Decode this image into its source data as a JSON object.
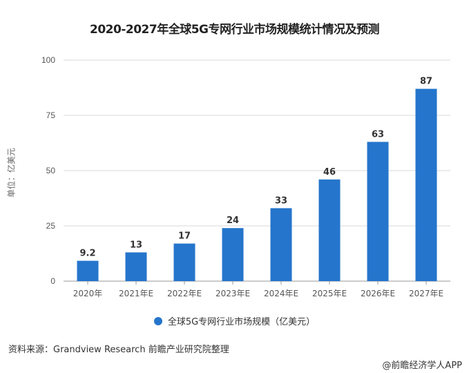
{
  "chart_data": {
    "type": "bar",
    "title": "2020-2027年全球5G专网行业市场规模统计情况及预测",
    "categories": [
      "2020年",
      "2021年E",
      "2022年E",
      "2023年E",
      "2024年E",
      "2025年E",
      "2026年E",
      "2027年E"
    ],
    "series": [
      {
        "name": "全球5G专网行业市场规模（亿美元）",
        "values": [
          9.2,
          13,
          17,
          24,
          33,
          46,
          63,
          87
        ],
        "color": "#2575cc"
      }
    ],
    "data_labels": [
      "9.2",
      "13",
      "17",
      "24",
      "33",
      "46",
      "63",
      "87"
    ],
    "xlabel": "",
    "ylabel": "单位：亿美元",
    "ylim": [
      0,
      100
    ],
    "yticks": [
      0,
      25,
      50,
      75,
      100
    ],
    "grid": true,
    "legend_position": "bottom"
  },
  "footer": {
    "source": "资料来源：Grandview Research 前瞻产业研究院整理",
    "credit": "@前瞻经济学人APP"
  }
}
